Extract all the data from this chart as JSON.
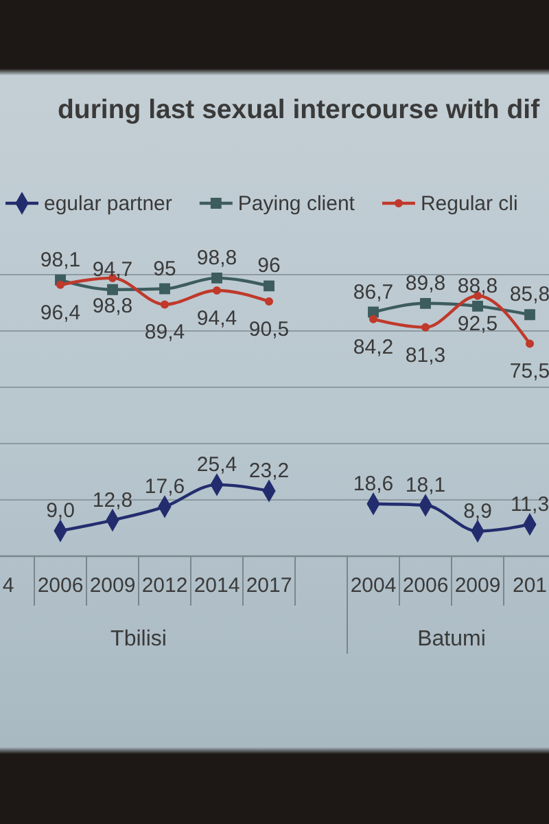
{
  "chart_data": {
    "type": "line",
    "title": "during last sexual intercourse with dif",
    "categories": [
      "4",
      "2006",
      "2009",
      "2012",
      "2014",
      "2017",
      null,
      "2004",
      "2006",
      "2009",
      "201"
    ],
    "annotations": [
      "Tbilisi",
      "Batumi"
    ],
    "series": [
      {
        "name": "egular partner",
        "color": "#232d6e",
        "marker": "diamond",
        "values": [
          null,
          9.0,
          12.8,
          17.6,
          25.4,
          23.2,
          null,
          18.6,
          18.1,
          8.9,
          11.3
        ],
        "value_labels": [
          null,
          "9,0",
          "12,8",
          "17,6",
          "25,4",
          "23,2",
          null,
          "18,6",
          "18,1",
          "8,9",
          "11,3"
        ]
      },
      {
        "name": "Paying client",
        "color": "#3d5c5e",
        "marker": "square",
        "values": [
          null,
          98.1,
          94.7,
          95,
          98.8,
          96,
          null,
          86.7,
          89.8,
          88.8,
          85.8
        ],
        "value_labels": [
          null,
          "98,1",
          "94,7",
          "95",
          "98,8",
          "96",
          null,
          "86,7",
          "89,8",
          "88,8",
          "85,8"
        ]
      },
      {
        "name": "Regular cli",
        "color": "#c0392b",
        "marker": "circle",
        "values": [
          null,
          96.4,
          98.8,
          89.4,
          94.4,
          90.5,
          null,
          84.2,
          81.3,
          92.5,
          75.5
        ],
        "value_labels": [
          null,
          "96,4",
          "98,8",
          "89,4",
          "94,4",
          "90,5",
          null,
          "84,2",
          "81,3",
          "92,5",
          "75,5"
        ]
      }
    ],
    "ylim": [
      0,
      100
    ],
    "yticks": [
      {
        "value": 0,
        "label": null
      },
      {
        "value": 20,
        "label": null
      },
      {
        "value": 40,
        "label": null
      },
      {
        "value": 60,
        "label": null
      },
      {
        "value": 80,
        "label": null
      },
      {
        "value": 100,
        "label": null
      }
    ],
    "grid": "y",
    "legend": "top",
    "tick_labels": "x"
  }
}
